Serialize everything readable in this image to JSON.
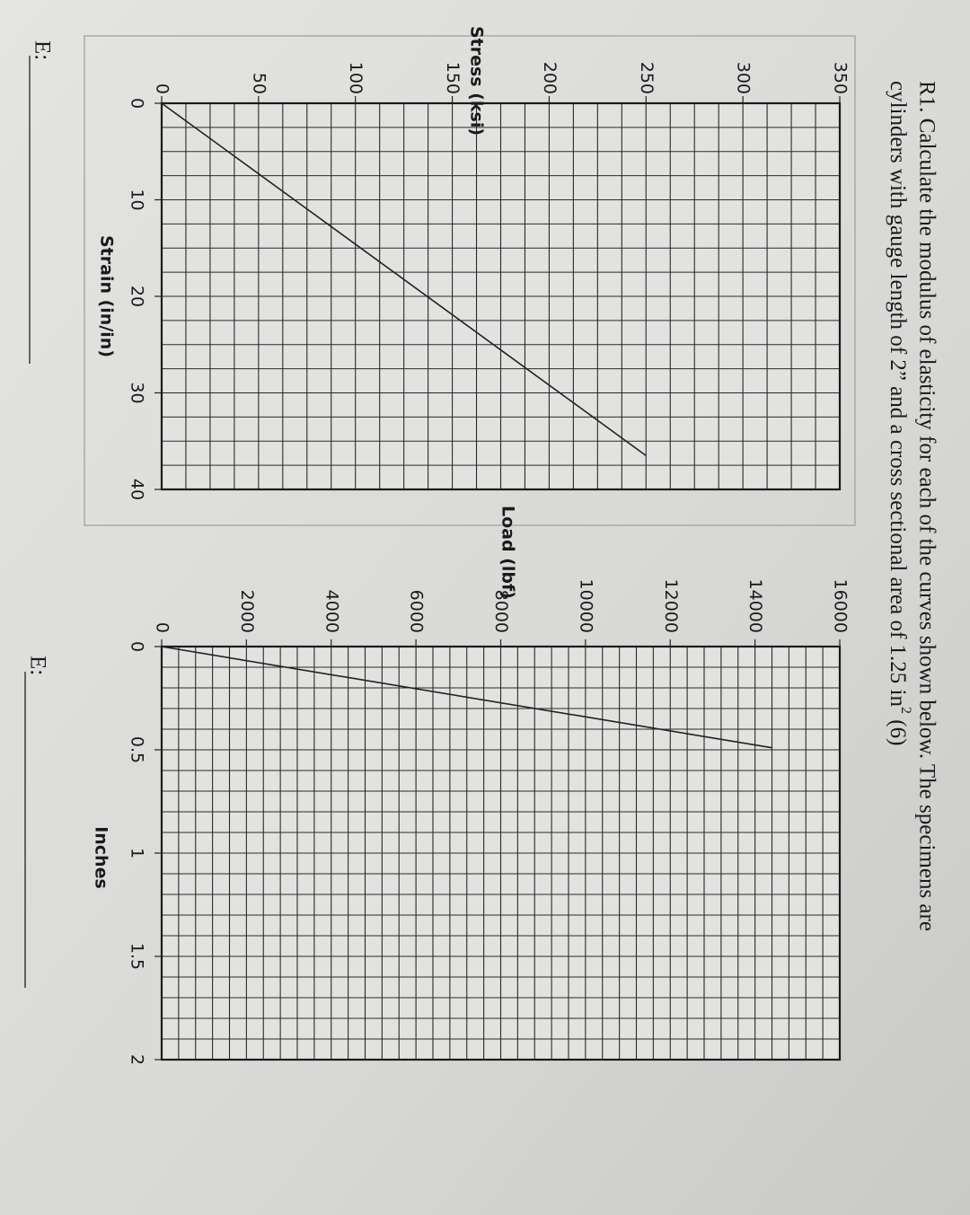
{
  "instructions": {
    "line1": "R1.  Calculate the modulus of elasticity for each of the curves shown below.  The specimens are",
    "line2": "cylinders with gauge length of 2” and a cross sectional area of 1.25 in",
    "sup": "2",
    "tail": " (6)"
  },
  "chart_data": [
    {
      "type": "line",
      "xlabel": "Strain (in/in)",
      "ylabel": "Stress (ksi)",
      "x": [
        0,
        36.5
      ],
      "values": [
        0,
        250
      ],
      "color": "#222222",
      "xlim": [
        0,
        40
      ],
      "xticks": [
        0,
        10,
        20,
        30,
        40
      ],
      "ylim": [
        0,
        350
      ],
      "yticks": [
        0,
        50,
        100,
        150,
        200,
        250,
        300,
        350
      ],
      "grid": true,
      "grid_divisions": 4,
      "answer_label": "E:"
    },
    {
      "type": "line",
      "xlabel": "Inches",
      "ylabel": "Load (lbf)",
      "x": [
        0,
        0.49
      ],
      "values": [
        0,
        14400
      ],
      "color": "#222222",
      "xlim": [
        0,
        2
      ],
      "xticks": [
        0,
        0.5,
        1,
        1.5,
        2
      ],
      "ylim": [
        0,
        16000
      ],
      "yticks": [
        0,
        2000,
        4000,
        6000,
        8000,
        10000,
        12000,
        14000,
        16000
      ],
      "grid": true,
      "grid_divisions": 5,
      "answer_label": "E:"
    }
  ]
}
